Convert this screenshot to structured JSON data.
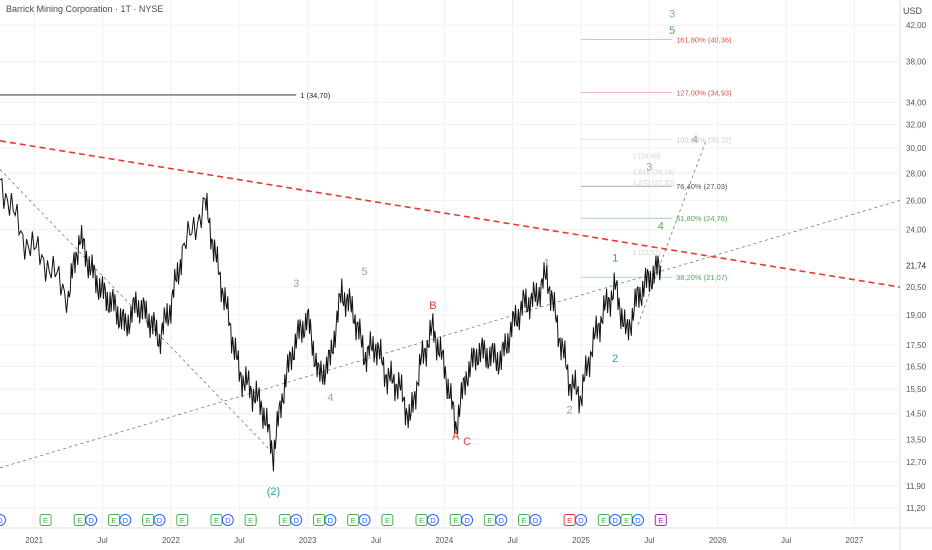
{
  "header": {
    "title": "Barrick Mining Corporation · 1T · NYSE",
    "currency": "USD"
  },
  "chart_data": {
    "type": "line",
    "title": "Barrick Mining Corporation · 1T · NYSE",
    "ylabel": "USD",
    "ylim": [
      10.6,
      45
    ],
    "xlim": [
      "2020-10",
      "2027-05"
    ],
    "grid": true,
    "log_scale": true,
    "x_ticks": [
      {
        "label": "2021",
        "t": "2021-01"
      },
      {
        "label": "Jul",
        "t": "2021-07"
      },
      {
        "label": "2022",
        "t": "2022-01"
      },
      {
        "label": "Jul",
        "t": "2022-07"
      },
      {
        "label": "2023",
        "t": "2023-01"
      },
      {
        "label": "Jul",
        "t": "2023-07"
      },
      {
        "label": "2024",
        "t": "2024-01"
      },
      {
        "label": "Jul",
        "t": "2024-07"
      },
      {
        "label": "2025",
        "t": "2025-01"
      },
      {
        "label": "Jul",
        "t": "2025-07"
      },
      {
        "label": "2026",
        "t": "2026-01"
      },
      {
        "label": "Jul",
        "t": "2026-07"
      },
      {
        "label": "2027",
        "t": "2027-01"
      }
    ],
    "y_ticks": [
      "42,00",
      "38,00",
      "34,00",
      "32,00",
      "30,00",
      "28,00",
      "26,00",
      "24,00",
      "20,50",
      "19,00",
      "17,50",
      "16,50",
      "15,50",
      "14,50",
      "13,50",
      "12,70",
      "11,90",
      "11,20"
    ],
    "last_price_label": "21,74",
    "last_price": 21.74,
    "price_series": [
      {
        "t": "2020-10",
        "v": 27.5
      },
      {
        "t": "2020-12",
        "v": 23.5
      },
      {
        "t": "2021-02",
        "v": 22.0
      },
      {
        "t": "2021-04",
        "v": 20.0
      },
      {
        "t": "2021-05",
        "v": 23.5
      },
      {
        "t": "2021-06",
        "v": 21.5
      },
      {
        "t": "2021-07",
        "v": 20.2
      },
      {
        "t": "2021-08",
        "v": 19.5
      },
      {
        "t": "2021-09",
        "v": 18.4
      },
      {
        "t": "2021-10",
        "v": 19.6
      },
      {
        "t": "2021-11",
        "v": 18.9
      },
      {
        "t": "2021-12",
        "v": 17.8
      },
      {
        "t": "2022-01",
        "v": 19.5
      },
      {
        "t": "2022-02",
        "v": 22.5
      },
      {
        "t": "2022-04",
        "v": 25.8
      },
      {
        "t": "2022-05",
        "v": 22.0
      },
      {
        "t": "2022-06",
        "v": 19.0
      },
      {
        "t": "2022-07",
        "v": 16.2
      },
      {
        "t": "2022-08",
        "v": 15.5
      },
      {
        "t": "2022-09",
        "v": 14.8
      },
      {
        "t": "2022-10",
        "v": 13.0
      },
      {
        "t": "2022-11",
        "v": 15.8
      },
      {
        "t": "2022-12",
        "v": 17.8
      },
      {
        "t": "2023-01",
        "v": 18.8
      },
      {
        "t": "2023-02",
        "v": 16.0
      },
      {
        "t": "2023-03",
        "v": 16.8
      },
      {
        "t": "2023-04",
        "v": 20.2
      },
      {
        "t": "2023-05",
        "v": 19.2
      },
      {
        "t": "2023-06",
        "v": 17.0
      },
      {
        "t": "2023-07",
        "v": 17.5
      },
      {
        "t": "2023-08",
        "v": 16.0
      },
      {
        "t": "2023-09",
        "v": 15.7
      },
      {
        "t": "2023-10",
        "v": 14.2
      },
      {
        "t": "2023-11",
        "v": 16.8
      },
      {
        "t": "2023-12",
        "v": 18.3
      },
      {
        "t": "2024-01",
        "v": 16.5
      },
      {
        "t": "2024-02",
        "v": 14.0
      },
      {
        "t": "2024-03",
        "v": 16.2
      },
      {
        "t": "2024-04",
        "v": 17.2
      },
      {
        "t": "2024-05",
        "v": 17.0
      },
      {
        "t": "2024-06",
        "v": 16.8
      },
      {
        "t": "2024-07",
        "v": 18.5
      },
      {
        "t": "2024-08",
        "v": 19.6
      },
      {
        "t": "2024-09",
        "v": 19.9
      },
      {
        "t": "2024-10",
        "v": 21.2
      },
      {
        "t": "2024-11",
        "v": 18.2
      },
      {
        "t": "2024-12",
        "v": 15.8
      },
      {
        "t": "2025-01",
        "v": 15.2
      },
      {
        "t": "2025-02",
        "v": 17.5
      },
      {
        "t": "2025-03",
        "v": 19.2
      },
      {
        "t": "2025-04",
        "v": 20.5
      },
      {
        "t": "2025-05",
        "v": 18.0
      },
      {
        "t": "2025-06",
        "v": 20.0
      },
      {
        "t": "2025-07",
        "v": 21.0
      },
      {
        "t": "2025-08",
        "v": 21.74
      }
    ],
    "horizontal_levels": [
      {
        "label": "1 (34,70)",
        "value": 34.7,
        "color": "#222222"
      },
      {
        "label": "161,80% (40,36)",
        "value": 40.36,
        "color": "#e05050"
      },
      {
        "label": "127,00% (34,93)",
        "value": 34.93,
        "color": "#e05050"
      },
      {
        "label": "100,00% (30,72)",
        "value": 30.72,
        "color": "#c8c8c8"
      },
      {
        "label": "76,40% (27,03)",
        "value": 27.03,
        "color": "#555555"
      },
      {
        "label": "61,80% (24,76)",
        "value": 24.76,
        "color": "#4caf50"
      },
      {
        "label": "38,20% (21,07)",
        "value": 21.07,
        "color": "#4caf50"
      }
    ],
    "faint_labels": [
      "2 (29,40)",
      "1,618 (28,14)",
      "1,272 (27,32)",
      "1 (22,57)"
    ],
    "trendlines": [
      {
        "name": "",
        "style": "red-dashed",
        "from": {
          "t": "2020-10",
          "v": 30.6
        },
        "to": {
          "t": "2027-05",
          "v": 20.5
        }
      },
      {
        "name": "",
        "style": "grey-dotted",
        "from": {
          "t": "2020-10",
          "v": 12.5
        },
        "to": {
          "t": "2027-05",
          "v": 26.0
        }
      },
      {
        "name": "",
        "style": "grey-dotted",
        "from": {
          "t": "2020-10",
          "v": 28.3
        },
        "to": {
          "t": "2022-10",
          "v": 13.0
        }
      },
      {
        "name": "",
        "style": "grey-dotted",
        "from": {
          "t": "2025-06",
          "v": 18.5
        },
        "to": {
          "t": "2025-12",
          "v": 30.7
        }
      }
    ],
    "wave_labels": [
      {
        "text": "3",
        "t": "2022-12",
        "v": 20.5,
        "color": "#9e9e9e"
      },
      {
        "text": "5",
        "t": "2023-06",
        "v": 21.2,
        "color": "#9e9e9e"
      },
      {
        "text": "4",
        "t": "2023-03",
        "v": 15.0,
        "color": "#9e9e9e"
      },
      {
        "text": "B",
        "t": "2023-12",
        "v": 19.3,
        "color": "#e53935"
      },
      {
        "text": "A",
        "t": "2024-02",
        "v": 13.5,
        "color": "#e53935"
      },
      {
        "text": "C",
        "t": "2024-03",
        "v": 13.3,
        "color": "#e53935"
      },
      {
        "text": "1",
        "t": "2024-10",
        "v": 21.7,
        "color": "#9e9e9e"
      },
      {
        "text": "2",
        "t": "2024-12",
        "v": 14.5,
        "color": "#9e9e9e"
      },
      {
        "text": "1",
        "t": "2025-04",
        "v": 22.0,
        "color": "#26a69a"
      },
      {
        "text": "2",
        "t": "2025-04",
        "v": 16.7,
        "color": "#26a69a"
      },
      {
        "text": "3",
        "t": "2025-07",
        "v": 28.2,
        "color": "#9e9e9e"
      },
      {
        "text": "4",
        "t": "2025-08",
        "v": 24.0,
        "color": "#4caf50"
      },
      {
        "text": "4",
        "t": "2025-11",
        "v": 30.4,
        "color": "#9e9e9e"
      },
      {
        "text": "3",
        "t": "2025-09",
        "v": 42.9,
        "color": "#9e9e9e"
      },
      {
        "text": "5",
        "t": "2025-09",
        "v": 41.0,
        "color": "#4caf50"
      },
      {
        "text": "(2)",
        "t": "2022-10",
        "v": 11.6,
        "color": "#26a69a"
      }
    ],
    "event_markers": [
      {
        "text": "D",
        "t": "2020-10",
        "color": "#2962ff"
      },
      {
        "text": "E",
        "t": "2021-02",
        "color": "#4caf50"
      },
      {
        "text": "E",
        "t": "2021-05",
        "color": "#4caf50"
      },
      {
        "text": "D",
        "t": "2021-06",
        "color": "#2962ff"
      },
      {
        "text": "E",
        "t": "2021-08",
        "color": "#4caf50"
      },
      {
        "text": "D",
        "t": "2021-09",
        "color": "#2962ff"
      },
      {
        "text": "E",
        "t": "2021-11",
        "color": "#4caf50"
      },
      {
        "text": "D",
        "t": "2021-12",
        "color": "#2962ff"
      },
      {
        "text": "E",
        "t": "2022-02",
        "color": "#4caf50"
      },
      {
        "text": "E",
        "t": "2022-05",
        "color": "#4caf50"
      },
      {
        "text": "D",
        "t": "2022-06",
        "color": "#2962ff"
      },
      {
        "text": "E",
        "t": "2022-08",
        "color": "#4caf50"
      },
      {
        "text": "E",
        "t": "2022-11",
        "color": "#4caf50"
      },
      {
        "text": "D",
        "t": "2022-12",
        "color": "#2962ff"
      },
      {
        "text": "E",
        "t": "2023-02",
        "color": "#4caf50"
      },
      {
        "text": "D",
        "t": "2023-03",
        "color": "#2962ff"
      },
      {
        "text": "E",
        "t": "2023-05",
        "color": "#4caf50"
      },
      {
        "text": "D",
        "t": "2023-06",
        "color": "#2962ff"
      },
      {
        "text": "E",
        "t": "2023-08",
        "color": "#4caf50"
      },
      {
        "text": "E",
        "t": "2023-11",
        "color": "#4caf50"
      },
      {
        "text": "D",
        "t": "2023-12",
        "color": "#2962ff"
      },
      {
        "text": "E",
        "t": "2024-02",
        "color": "#4caf50"
      },
      {
        "text": "D",
        "t": "2024-03",
        "color": "#2962ff"
      },
      {
        "text": "E",
        "t": "2024-05",
        "color": "#4caf50"
      },
      {
        "text": "D",
        "t": "2024-06",
        "color": "#2962ff"
      },
      {
        "text": "E",
        "t": "2024-08",
        "color": "#4caf50"
      },
      {
        "text": "D",
        "t": "2024-09",
        "color": "#2962ff"
      },
      {
        "text": "E",
        "t": "2024-12",
        "color": "#e53935"
      },
      {
        "text": "D",
        "t": "2025-01",
        "color": "#2962ff"
      },
      {
        "text": "E",
        "t": "2025-03",
        "color": "#4caf50"
      },
      {
        "text": "D",
        "t": "2025-04",
        "color": "#2962ff"
      },
      {
        "text": "E",
        "t": "2025-05",
        "color": "#4caf50"
      },
      {
        "text": "D",
        "t": "2025-06",
        "color": "#2962ff"
      },
      {
        "text": "E",
        "t": "2025-08",
        "color": "#9c27b0"
      }
    ],
    "colors": {
      "price": "#111111",
      "trend_red": "#e53935",
      "grid": "#f0f0f0",
      "axis_text": "#555555",
      "price_label_bg": "#ffffff"
    }
  }
}
